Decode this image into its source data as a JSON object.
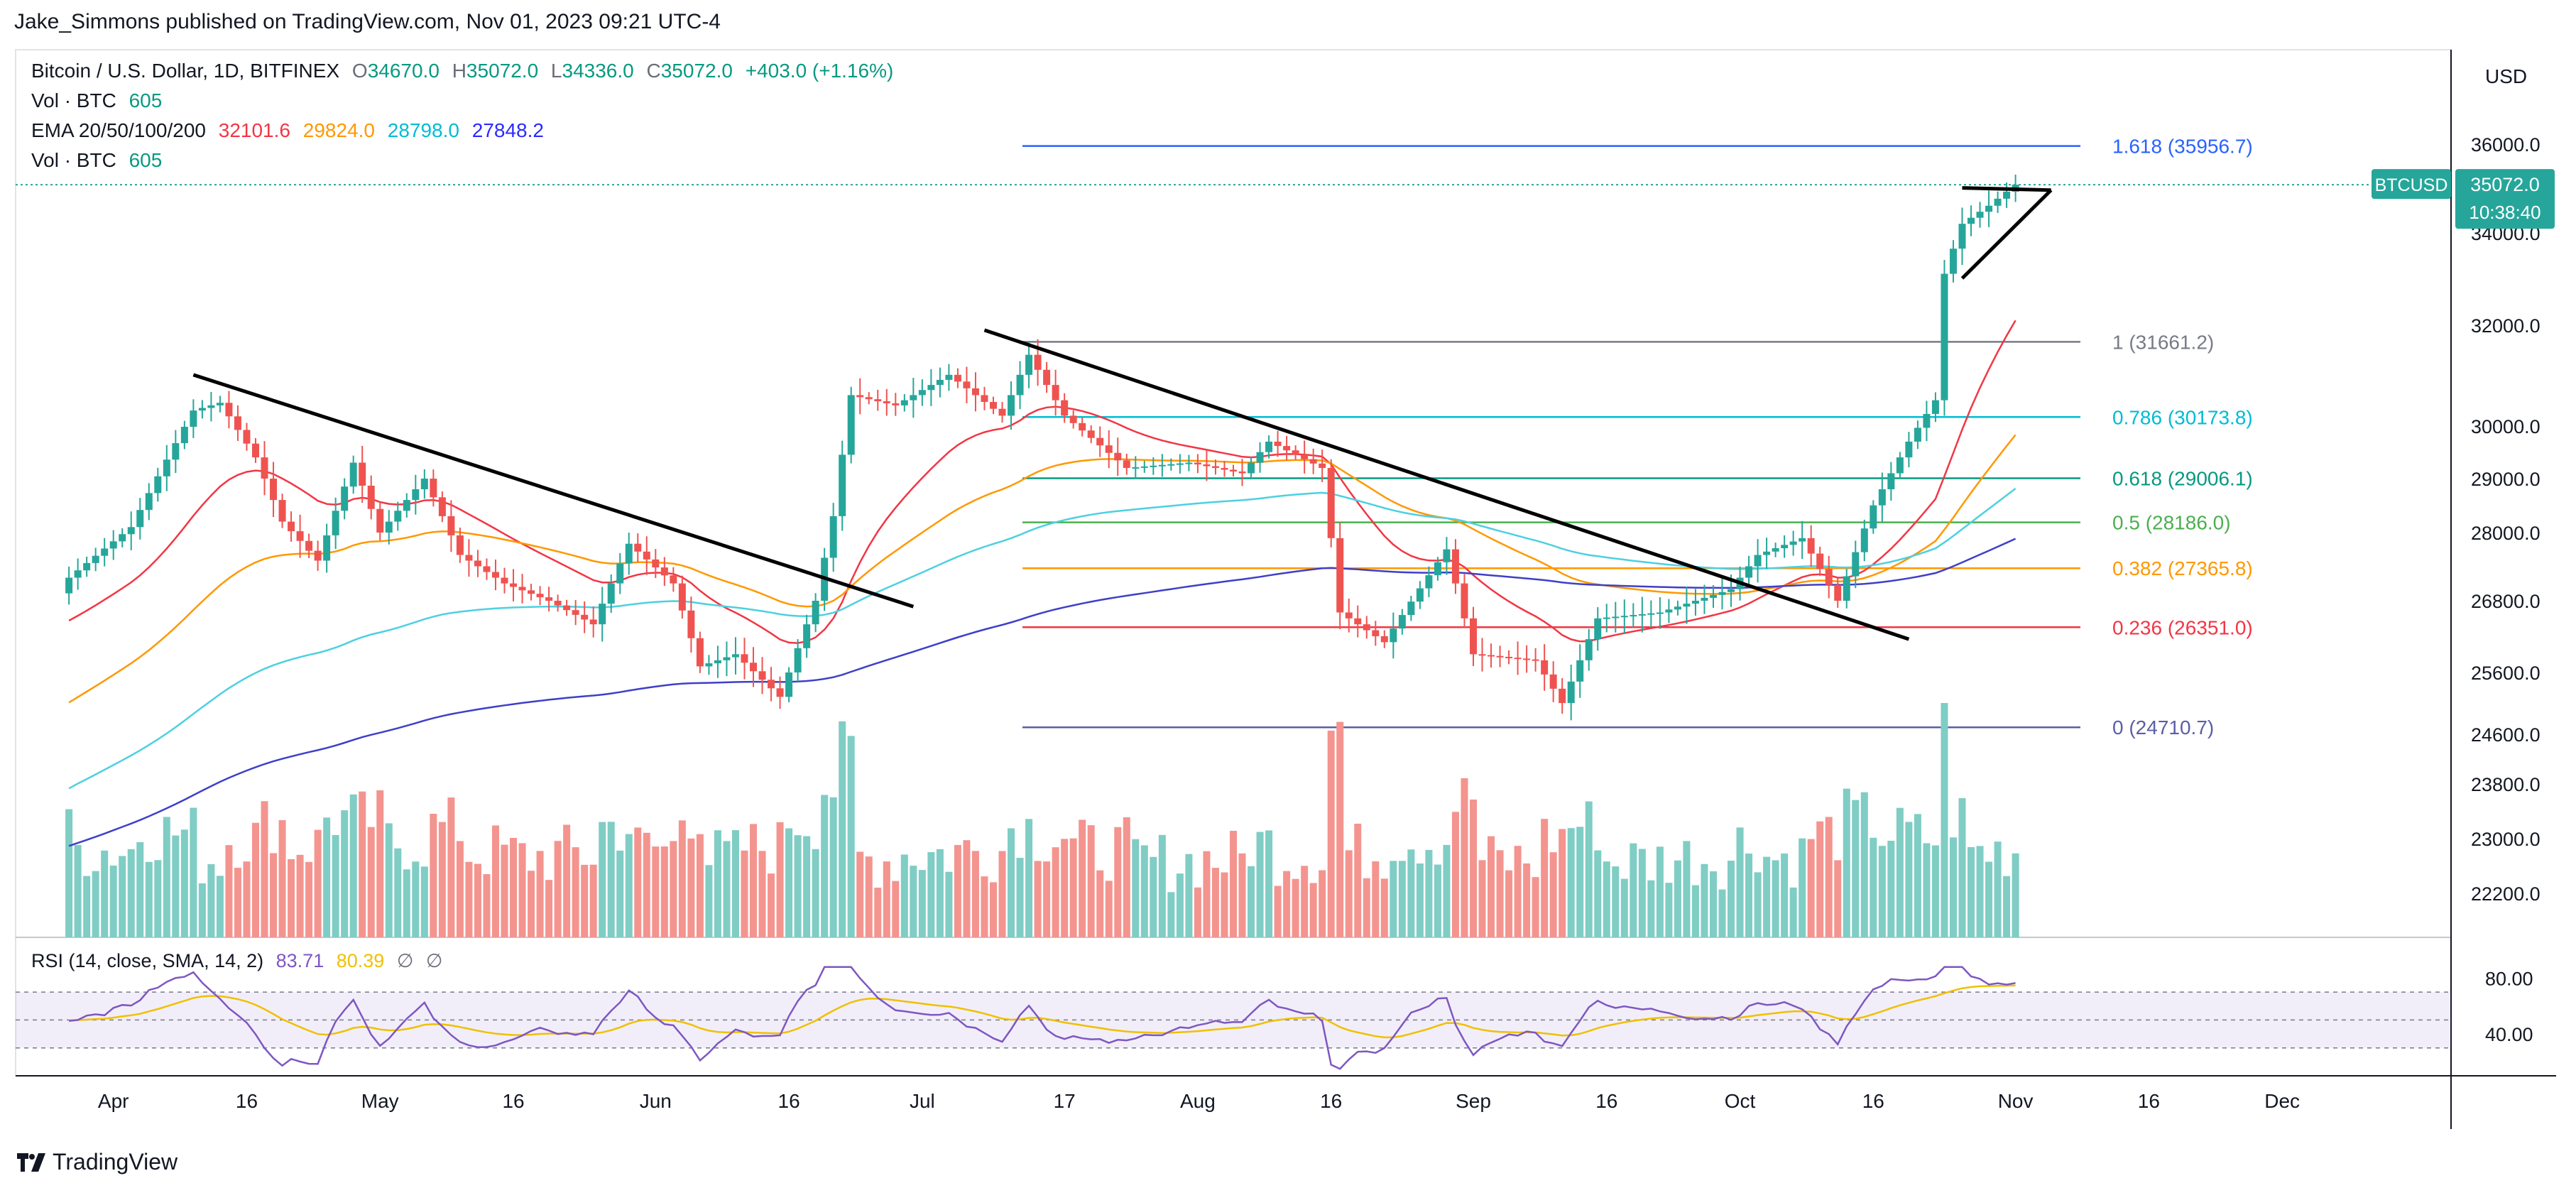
{
  "header": {
    "publisher_line": "Jake_Simmons published on TradingView.com, Nov 01, 2023 09:21 UTC-4"
  },
  "footer": {
    "brand": "TradingView"
  },
  "legend": {
    "symbol": "Bitcoin / U.S. Dollar, 1D, BITFINEX",
    "ohlc": {
      "o_label": "O",
      "o": "34670.0",
      "h_label": "H",
      "h": "35072.0",
      "l_label": "L",
      "l": "34336.0",
      "c_label": "C",
      "c": "35072.0",
      "change": "+403.0 (+1.16%)"
    },
    "vol1": {
      "label": "Vol · BTC",
      "value": "605"
    },
    "ema": {
      "label": "EMA 20/50/100/200",
      "v20": "32101.6",
      "v50": "29824.0",
      "v100": "28798.0",
      "v200": "27848.2"
    },
    "vol2": {
      "label": "Vol · BTC",
      "value": "605"
    },
    "rsi": {
      "label": "RSI (14, close, SMA, 14, 2)",
      "value": "83.71",
      "sma": "80.39",
      "extra1": "∅",
      "extra2": "∅"
    }
  },
  "price_scale": {
    "currency": "USD"
  },
  "last_price": {
    "symbol_tag": "BTCUSD",
    "price": "35072.0",
    "countdown": "10:38:40"
  },
  "colors": {
    "up": "#26a69a",
    "down": "#ef5350",
    "vol_up": "#7fcdc4",
    "vol_down": "#f4948f",
    "ema20": "#f23645",
    "ema50": "#ff9800",
    "ema100": "#4dd0e1",
    "ema200": "#3f3fc8",
    "rsi": "#7e57c2",
    "rsi_sma": "#f0c000"
  },
  "chart_data": [
    {
      "type": "candlestick",
      "title": "Bitcoin / U.S. Dollar, 1D, BITFINEX",
      "x_tick_labels": [
        "Apr",
        "16",
        "May",
        "16",
        "Jun",
        "16",
        "Jul",
        "17",
        "Aug",
        "16",
        "Sep",
        "16",
        "Oct",
        "16",
        "Nov",
        "16",
        "Dec"
      ],
      "y_tick_labels": [
        "36000.0",
        "34000.0",
        "32000.0",
        "30000.0",
        "29000.0",
        "28000.0",
        "26800.0",
        "25600.0",
        "24600.0",
        "23800.0",
        "23000.0",
        "22200.0"
      ],
      "y_scale": "log",
      "series_close": [
        {
          "date": "2023-03-27",
          "close": 27200
        },
        {
          "date": "2023-04-03",
          "close": 28100
        },
        {
          "date": "2023-04-10",
          "close": 30300
        },
        {
          "date": "2023-04-13",
          "close": 30450
        },
        {
          "date": "2023-04-17",
          "close": 29400
        },
        {
          "date": "2023-04-20",
          "close": 28200
        },
        {
          "date": "2023-04-24",
          "close": 27500
        },
        {
          "date": "2023-04-28",
          "close": 29300
        },
        {
          "date": "2023-05-01",
          "close": 28000
        },
        {
          "date": "2023-05-06",
          "close": 29000
        },
        {
          "date": "2023-05-10",
          "close": 27600
        },
        {
          "date": "2023-05-15",
          "close": 27100
        },
        {
          "date": "2023-05-20",
          "close": 26800
        },
        {
          "date": "2023-05-25",
          "close": 26400
        },
        {
          "date": "2023-05-29",
          "close": 27800
        },
        {
          "date": "2023-06-03",
          "close": 27100
        },
        {
          "date": "2023-06-06",
          "close": 25700
        },
        {
          "date": "2023-06-10",
          "close": 25900
        },
        {
          "date": "2023-06-15",
          "close": 25200
        },
        {
          "date": "2023-06-19",
          "close": 26800
        },
        {
          "date": "2023-06-21",
          "close": 28300
        },
        {
          "date": "2023-06-23",
          "close": 30600
        },
        {
          "date": "2023-06-28",
          "close": 30400
        },
        {
          "date": "2023-07-04",
          "close": 31000
        },
        {
          "date": "2023-07-10",
          "close": 30200
        },
        {
          "date": "2023-07-13",
          "close": 31400
        },
        {
          "date": "2023-07-17",
          "close": 30200
        },
        {
          "date": "2023-07-24",
          "close": 29200
        },
        {
          "date": "2023-07-31",
          "close": 29300
        },
        {
          "date": "2023-08-06",
          "close": 29100
        },
        {
          "date": "2023-08-09",
          "close": 29700
        },
        {
          "date": "2023-08-15",
          "close": 29200
        },
        {
          "date": "2023-08-17",
          "close": 26600
        },
        {
          "date": "2023-08-22",
          "close": 26100
        },
        {
          "date": "2023-08-29",
          "close": 27700
        },
        {
          "date": "2023-09-01",
          "close": 25900
        },
        {
          "date": "2023-09-08",
          "close": 25800
        },
        {
          "date": "2023-09-11",
          "close": 25100
        },
        {
          "date": "2023-09-15",
          "close": 26500
        },
        {
          "date": "2023-09-22",
          "close": 26600
        },
        {
          "date": "2023-09-30",
          "close": 27000
        },
        {
          "date": "2023-10-03",
          "close": 27600
        },
        {
          "date": "2023-10-08",
          "close": 27900
        },
        {
          "date": "2023-10-12",
          "close": 26800
        },
        {
          "date": "2023-10-16",
          "close": 28500
        },
        {
          "date": "2023-10-20",
          "close": 29700
        },
        {
          "date": "2023-10-23",
          "close": 30500
        },
        {
          "date": "2023-10-24",
          "close": 33100
        },
        {
          "date": "2023-10-26",
          "close": 34200
        },
        {
          "date": "2023-10-29",
          "close": 34600
        },
        {
          "date": "2023-11-01",
          "close": 35072
        }
      ],
      "fibonacci": [
        {
          "label": "1.618 (35956.7)",
          "value": 35956.7,
          "color": "#2962ff"
        },
        {
          "label": "1 (31661.2)",
          "value": 31661.2,
          "color": "#787b86"
        },
        {
          "label": "0.786 (30173.8)",
          "value": 30173.8,
          "color": "#00bcd4"
        },
        {
          "label": "0.618 (29006.1)",
          "value": 29006.1,
          "color": "#089981"
        },
        {
          "label": "0.5 (28186.0)",
          "value": 28186.0,
          "color": "#4caf50"
        },
        {
          "label": "0.382 (27365.8)",
          "value": 27365.8,
          "color": "#ff9800"
        },
        {
          "label": "0.236 (26351.0)",
          "value": 26351.0,
          "color": "#f23645"
        },
        {
          "label": "0 (24710.7)",
          "value": 24710.7,
          "color": "#5b5ea6"
        }
      ],
      "ema_last": {
        "EMA20": 32101.6,
        "EMA50": 29824.0,
        "EMA100": 28798.0,
        "EMA200": 27848.2
      },
      "last_close": 35072.0
    },
    {
      "type": "line",
      "title": "RSI (14, close, SMA, 14, 2)",
      "y_tick_labels": [
        "80.00",
        "40.00"
      ],
      "bands": [
        30,
        50,
        70
      ],
      "rsi_last": 83.71,
      "rsi_sma_last": 80.39
    }
  ]
}
